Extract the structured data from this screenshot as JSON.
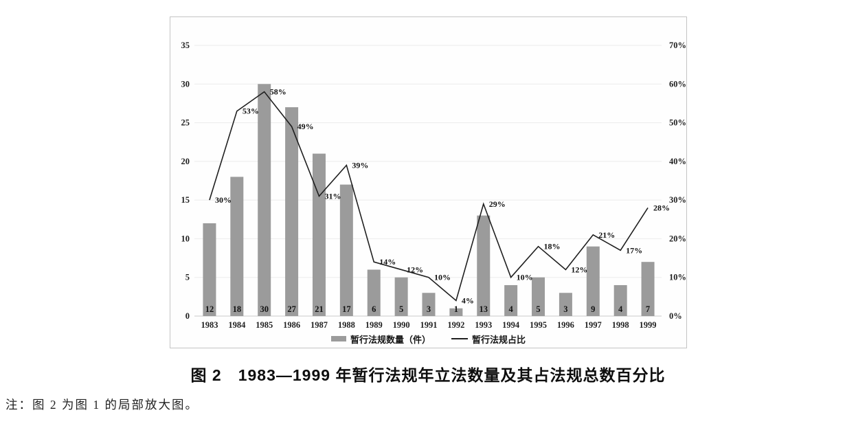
{
  "figure": {
    "title": "图 2　1983—1999 年暂行法规年立法数量及其占法规总数百分比",
    "note": "注：图 2 为图 1 的局部放大图。"
  },
  "chart_data": {
    "type": "combo",
    "title": "图 2　1983—1999 年暂行法规年立法数量及其占法规总数百分比",
    "xlabel": "",
    "ylabel": "",
    "categories": [
      "1983",
      "1984",
      "1985",
      "1986",
      "1987",
      "1988",
      "1989",
      "1990",
      "1991",
      "1992",
      "1993",
      "1994",
      "1995",
      "1996",
      "1997",
      "1998",
      "1999"
    ],
    "series": [
      {
        "name": "暂行法规数量（件）",
        "type": "bar",
        "axis": "left",
        "values": [
          12,
          18,
          30,
          27,
          21,
          17,
          6,
          5,
          3,
          1,
          13,
          4,
          5,
          3,
          9,
          4,
          7
        ]
      },
      {
        "name": "暂行法规占比",
        "type": "line",
        "axis": "right",
        "values": [
          30,
          53,
          58,
          49,
          31,
          39,
          14,
          12,
          10,
          4,
          29,
          10,
          18,
          12,
          21,
          17,
          28
        ],
        "labels": [
          "30%",
          "53%",
          "58%",
          "49%",
          "31%",
          "39%",
          "14%",
          "12%",
          "10%",
          "4%",
          "29%",
          "10%",
          "18%",
          "12%",
          "21%",
          "17%",
          "28%"
        ]
      }
    ],
    "left_axis": {
      "min": 0,
      "max": 35,
      "step": 5,
      "ticks": [
        "0",
        "5",
        "10",
        "15",
        "20",
        "25",
        "30",
        "35"
      ]
    },
    "right_axis": {
      "min": 0,
      "max": 70,
      "step": 10,
      "ticks": [
        "0%",
        "10%",
        "20%",
        "30%",
        "40%",
        "50%",
        "60%",
        "70%"
      ]
    },
    "grid": true,
    "legend_position": "bottom",
    "colors": {
      "bar": "#9b9b9b",
      "line": "#1f1f1f",
      "grid": "#ebebeb",
      "baseline": "#c9c9c9",
      "frame": "#c4c4c4",
      "text": "#1a1a1a"
    }
  }
}
